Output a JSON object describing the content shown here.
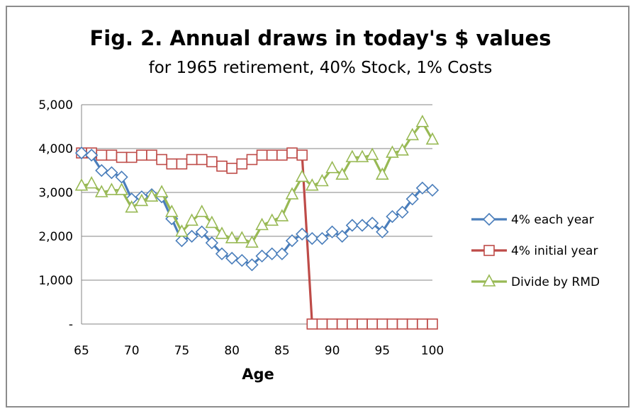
{
  "chart_data": {
    "type": "line",
    "title": "Fig. 2. Annual draws in today's $ values",
    "subtitle": "for 1965 retirement, 40% Stock, 1% Costs",
    "xlabel": "Age",
    "ylabel": "",
    "xlim": [
      65,
      100
    ],
    "ylim": [
      0,
      5000
    ],
    "x_ticks": [
      "65",
      "70",
      "75",
      "80",
      "85",
      "90",
      "95",
      "100"
    ],
    "y_ticks": [
      "-",
      "1,000",
      "2,000",
      "3,000",
      "4,000",
      "5,000"
    ],
    "grid": "horizontal",
    "legend_position": "right",
    "x": [
      65,
      66,
      67,
      68,
      69,
      70,
      71,
      72,
      73,
      74,
      75,
      76,
      77,
      78,
      79,
      80,
      81,
      82,
      83,
      84,
      85,
      86,
      87,
      88,
      89,
      90,
      91,
      92,
      93,
      94,
      95,
      96,
      97,
      98,
      99,
      100
    ],
    "series": [
      {
        "name": "4% each year",
        "color": "#4a7ebb",
        "marker": "diamond",
        "values": [
          3900,
          3850,
          3500,
          3450,
          3350,
          2850,
          2900,
          2950,
          2900,
          2400,
          1900,
          2000,
          2100,
          1850,
          1600,
          1500,
          1450,
          1350,
          1550,
          1600,
          1600,
          1900,
          2050,
          1950,
          1950,
          2100,
          2000,
          2250,
          2250,
          2300,
          2100,
          2450,
          2550,
          2850,
          3100,
          3050
        ]
      },
      {
        "name": "4% initial year",
        "color": "#be4b48",
        "marker": "square",
        "values": [
          3900,
          3900,
          3850,
          3850,
          3800,
          3800,
          3850,
          3850,
          3750,
          3650,
          3650,
          3750,
          3750,
          3700,
          3600,
          3550,
          3650,
          3750,
          3850,
          3850,
          3850,
          3900,
          3850,
          0,
          0,
          0,
          0,
          0,
          0,
          0,
          0,
          0,
          0,
          0,
          0,
          0
        ]
      },
      {
        "name": "Divide by RMD",
        "color": "#98b954",
        "marker": "triangle",
        "values": [
          3150,
          3200,
          3000,
          3050,
          3050,
          2650,
          2800,
          2900,
          3000,
          2550,
          2100,
          2350,
          2550,
          2300,
          2050,
          1950,
          1950,
          1850,
          2250,
          2350,
          2450,
          2950,
          3350,
          3150,
          3250,
          3550,
          3400,
          3800,
          3800,
          3850,
          3400,
          3900,
          3950,
          4300,
          4600,
          4200
        ]
      }
    ]
  }
}
